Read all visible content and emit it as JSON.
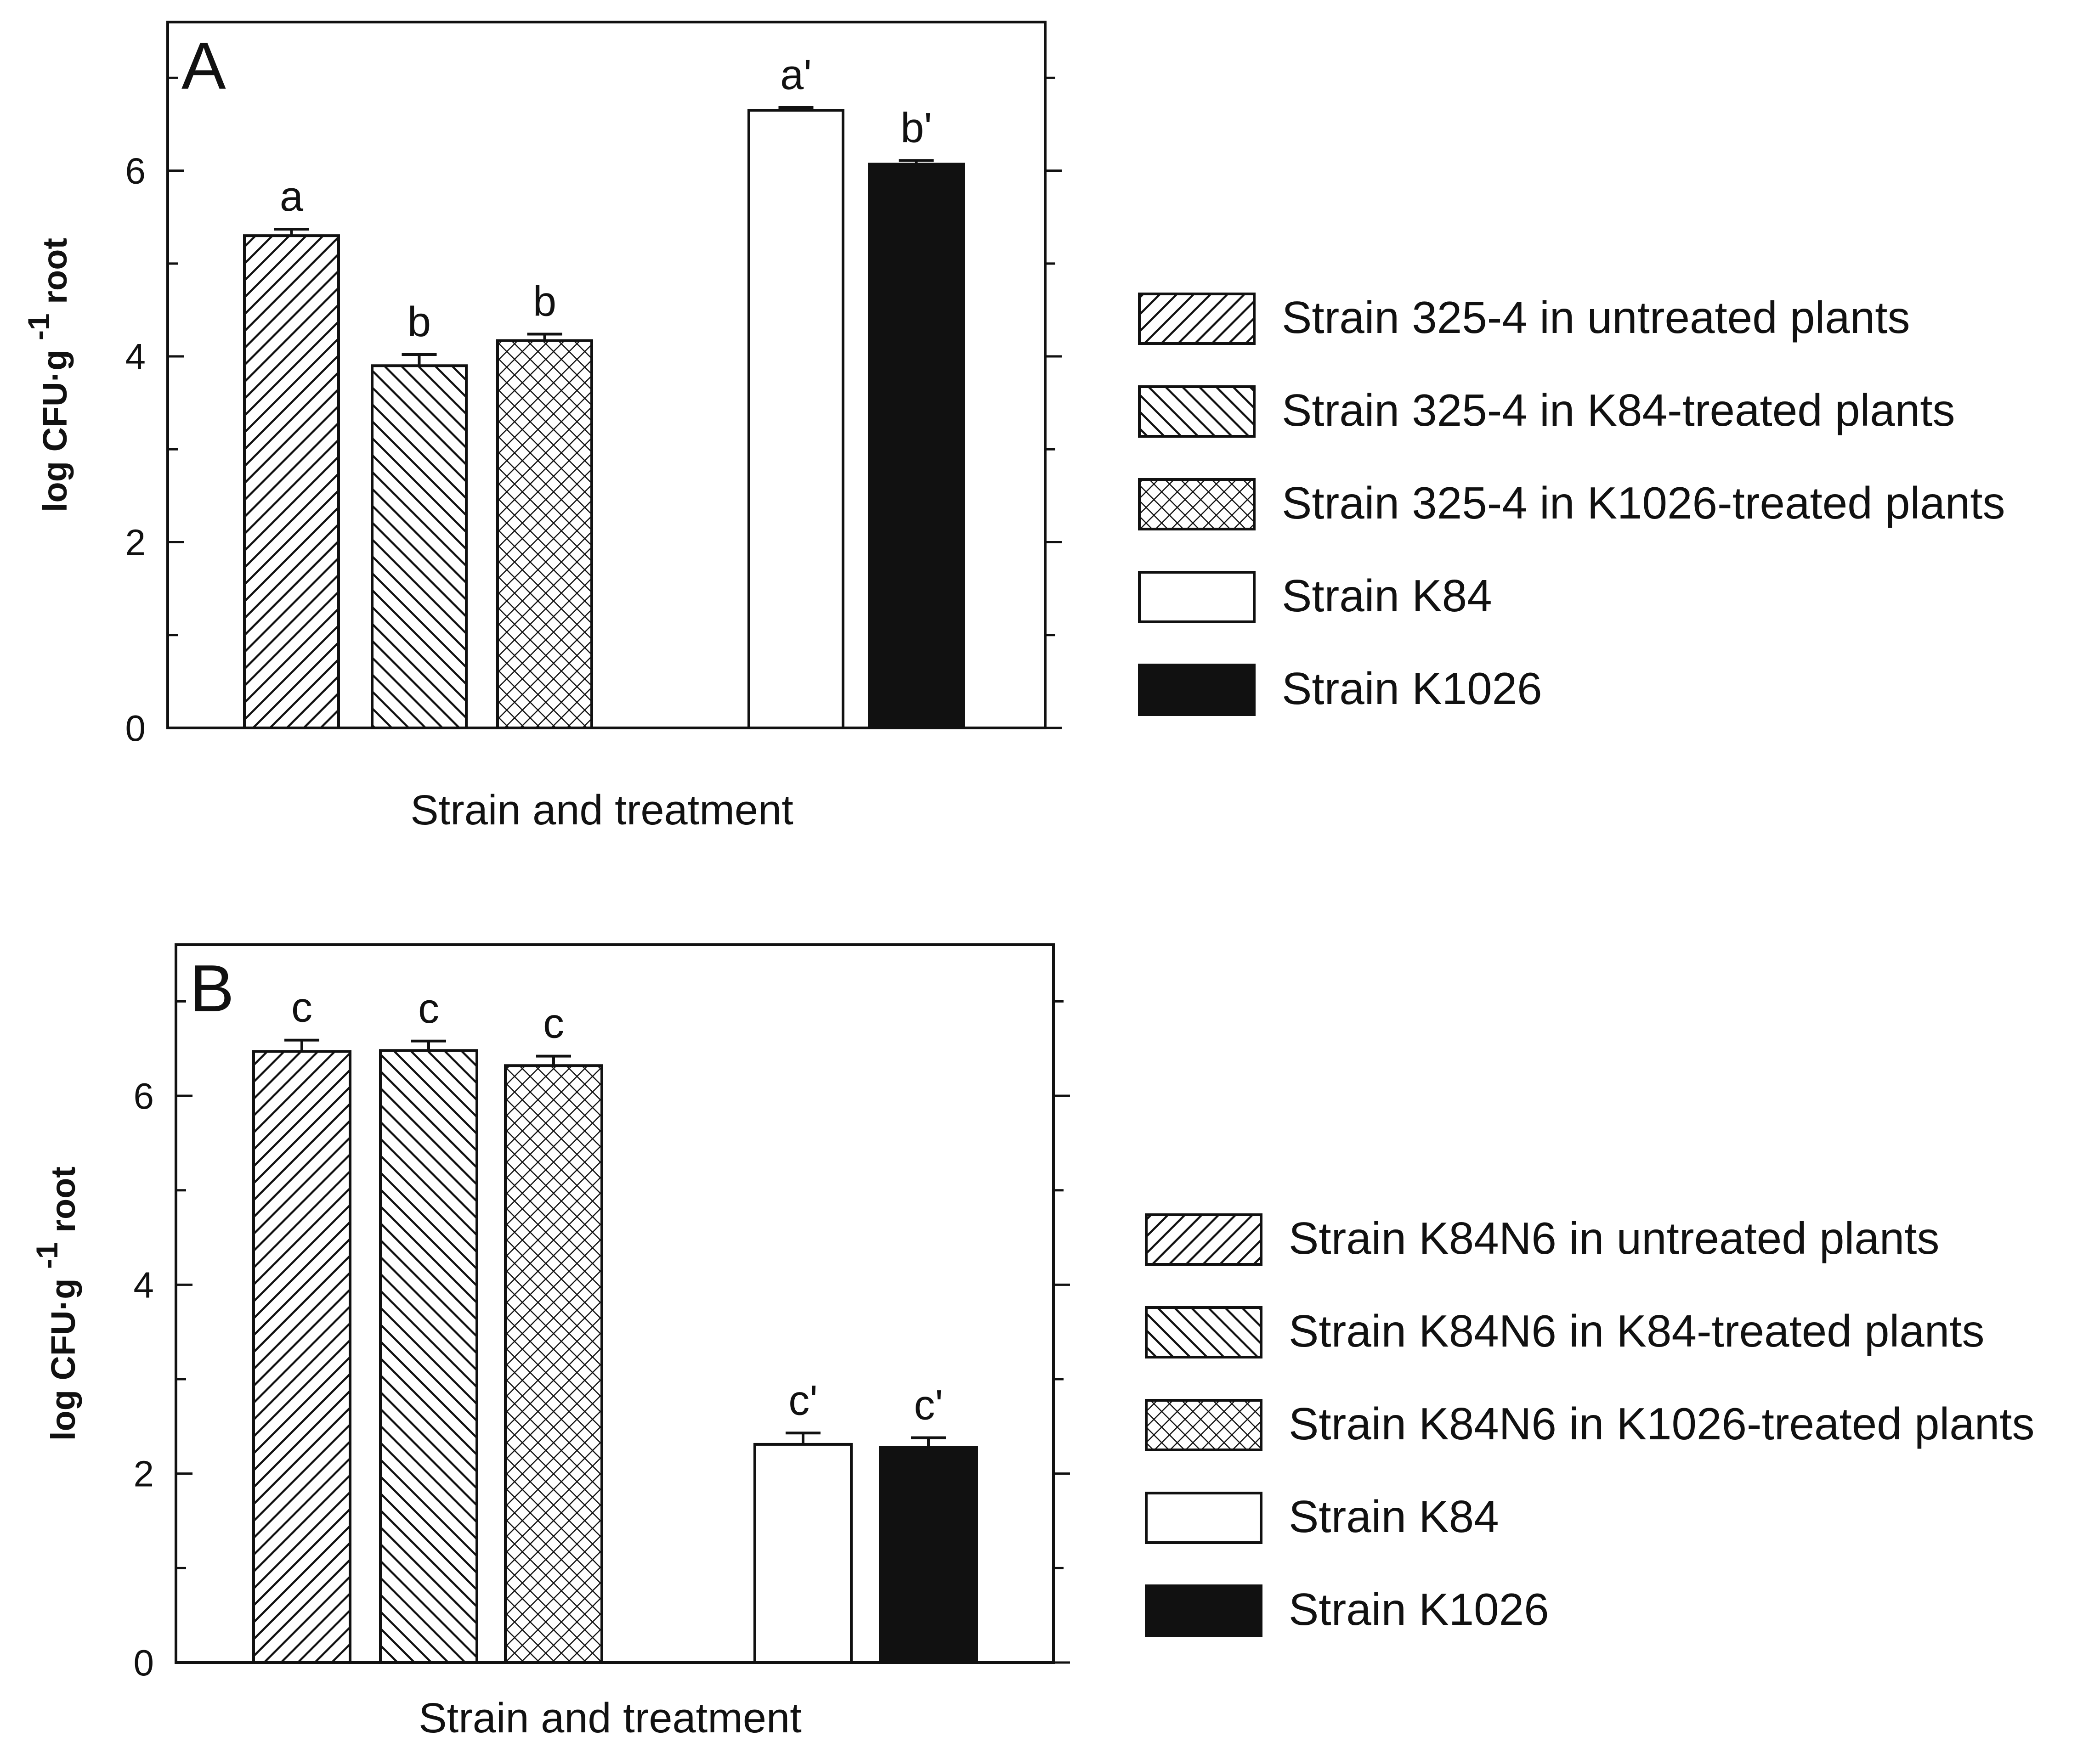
{
  "chart_data": [
    {
      "type": "bar",
      "panel_label": "A",
      "ylabel": "log CFU·g",
      "ylabel_sup": "-1",
      "ylabel_tail": "root",
      "xlabel": "Strain and treatment",
      "ylim": [
        0,
        7.6
      ],
      "yticks": [
        "0",
        "2",
        "4",
        "6"
      ],
      "grid": false,
      "legend_position": "right",
      "bars": [
        {
          "series": "Strain 325-4 in untreated plants",
          "value": 5.3,
          "error": 0.07,
          "letter": "a",
          "fill": "hatch-fwd"
        },
        {
          "series": "Strain 325-4 in K84-treated plants",
          "value": 3.9,
          "error": 0.12,
          "letter": "b",
          "fill": "hatch-back"
        },
        {
          "series": "Strain 325-4 in K1026-treated plants",
          "value": 4.17,
          "error": 0.07,
          "letter": "b",
          "fill": "hatch-cross"
        },
        {
          "series": "Strain K84",
          "value": 6.65,
          "error": 0.03,
          "letter": "a'",
          "fill": "white"
        },
        {
          "series": "Strain K1026",
          "value": 6.07,
          "error": 0.04,
          "letter": "b'",
          "fill": "black"
        }
      ],
      "legend": [
        {
          "label": "Strain 325-4 in untreated plants",
          "fill": "hatch-fwd"
        },
        {
          "label": "Strain 325-4 in K84-treated plants",
          "fill": "hatch-back"
        },
        {
          "label": "Strain 325-4 in K1026-treated plants",
          "fill": "hatch-cross"
        },
        {
          "label": "Strain K84",
          "fill": "white"
        },
        {
          "label": "Strain K1026",
          "fill": "black"
        }
      ]
    },
    {
      "type": "bar",
      "panel_label": "B",
      "ylabel": "log CFU·g",
      "ylabel_sup": "-1",
      "ylabel_tail": "root",
      "xlabel": "Strain and treatment",
      "ylim": [
        0,
        7.6
      ],
      "yticks": [
        "0",
        "2",
        "4",
        "6"
      ],
      "grid": false,
      "legend_position": "right",
      "bars": [
        {
          "series": "Strain K84N6 in untreated plants",
          "value": 6.47,
          "error": 0.12,
          "letter": "c",
          "fill": "hatch-fwd"
        },
        {
          "series": "Strain K84N6 in K84-treated plants",
          "value": 6.48,
          "error": 0.1,
          "letter": "c",
          "fill": "hatch-back"
        },
        {
          "series": "Strain K84N6 in K1026-treated plants",
          "value": 6.32,
          "error": 0.1,
          "letter": "c",
          "fill": "hatch-cross"
        },
        {
          "series": "Strain K84",
          "value": 2.31,
          "error": 0.12,
          "letter": "c'",
          "fill": "white"
        },
        {
          "series": "Strain K1026",
          "value": 2.28,
          "error": 0.1,
          "letter": "c'",
          "fill": "black"
        }
      ],
      "legend": [
        {
          "label": "Strain K84N6 in untreated plants",
          "fill": "hatch-fwd"
        },
        {
          "label": "Strain K84N6 in K84-treated plants",
          "fill": "hatch-back"
        },
        {
          "label": "Strain K84N6 in K1026-treated plants",
          "fill": "hatch-cross"
        },
        {
          "label": "Strain K84",
          "fill": "white"
        },
        {
          "label": "Strain K1026",
          "fill": "black"
        }
      ]
    }
  ]
}
